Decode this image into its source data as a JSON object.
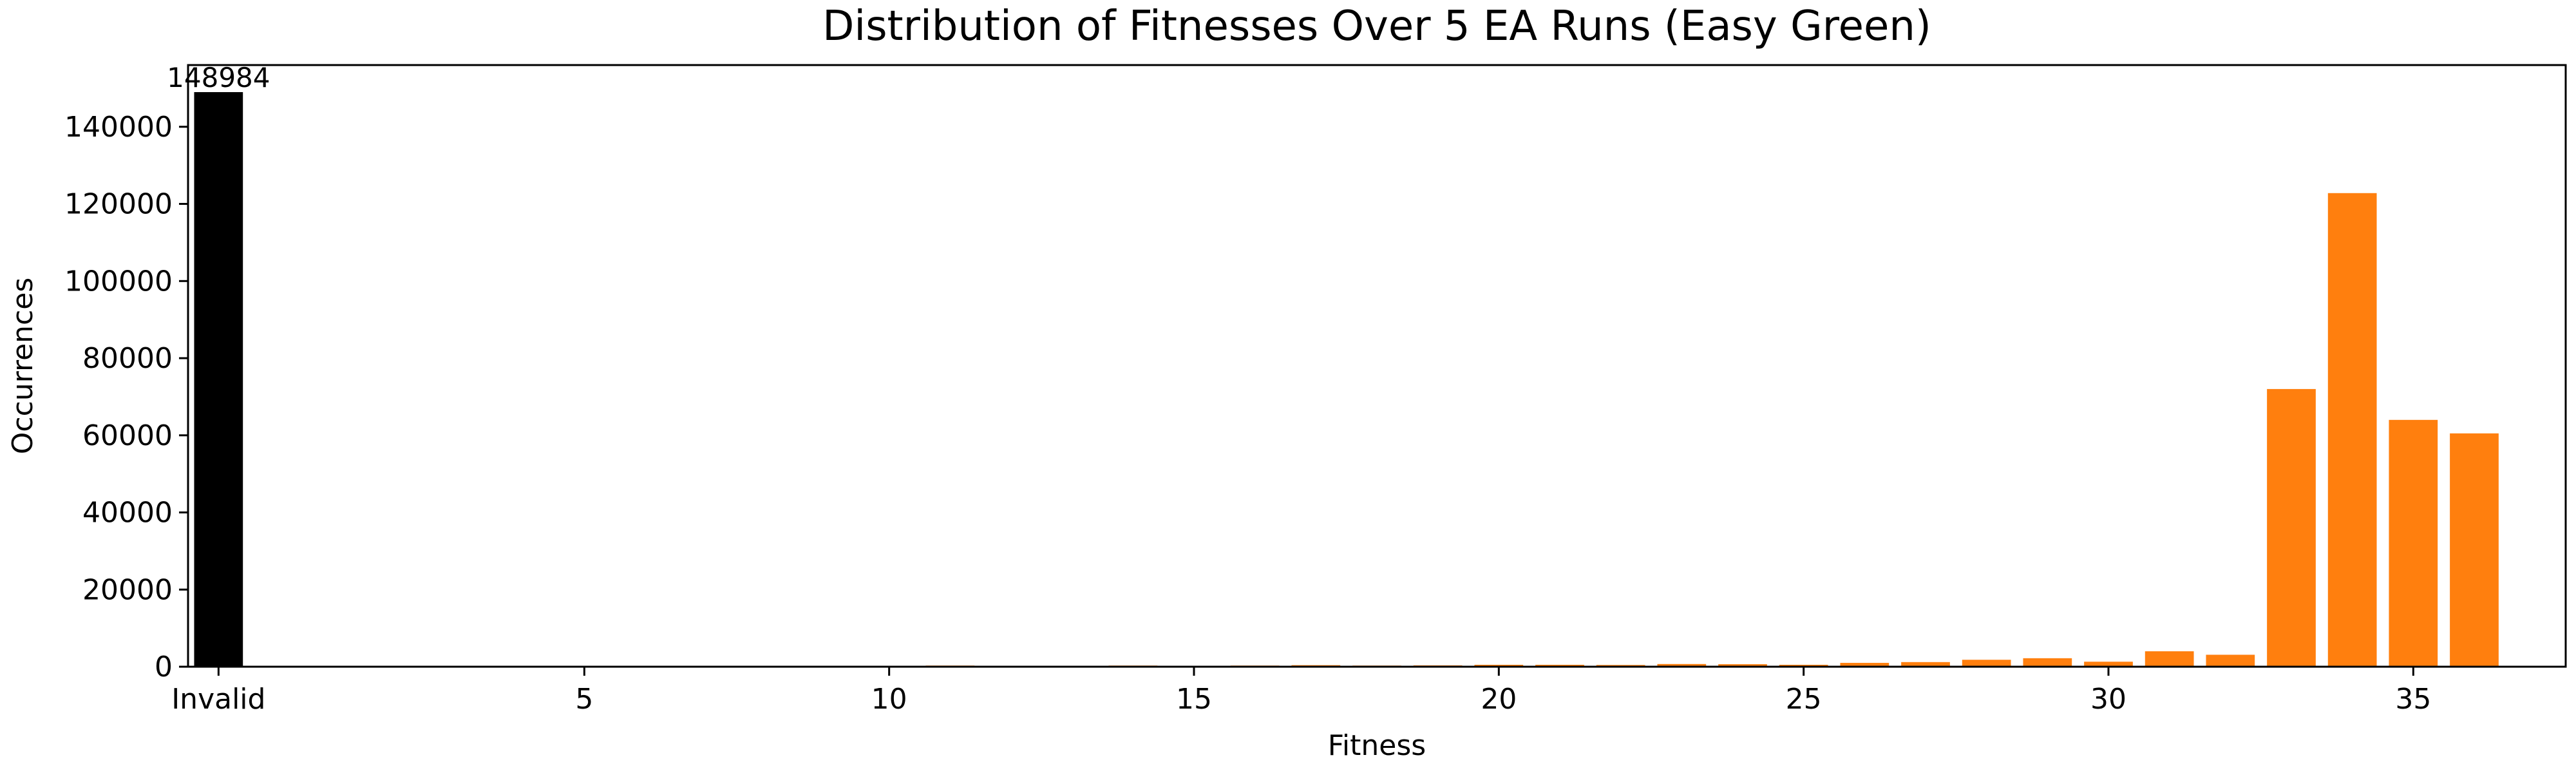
{
  "chart_data": {
    "type": "bar",
    "title": "Distribution of Fitnesses Over 5 EA Runs (Easy Green)",
    "xlabel": "Fitness",
    "ylabel": "Occurrences",
    "grid": false,
    "xlim": [
      -0.5,
      38.5
    ],
    "ylim": [
      0,
      156000
    ],
    "y_ticks": [
      0,
      20000,
      40000,
      60000,
      80000,
      100000,
      120000,
      140000
    ],
    "x_ticks": [
      {
        "x": 0,
        "label": "Invalid"
      },
      {
        "x": 6,
        "label": "5"
      },
      {
        "x": 11,
        "label": "10"
      },
      {
        "x": 16,
        "label": "15"
      },
      {
        "x": 21,
        "label": "20"
      },
      {
        "x": 26,
        "label": "25"
      },
      {
        "x": 31,
        "label": "30"
      },
      {
        "x": 36,
        "label": "35"
      }
    ],
    "invalid_bar": {
      "x": 0,
      "value": 148984,
      "label": "148984",
      "color": "#000000"
    },
    "series": [
      {
        "color": "#ff7f0e",
        "points": [
          {
            "x": 7,
            "value": 150
          },
          {
            "x": 8,
            "value": 150
          },
          {
            "x": 9,
            "value": 200
          },
          {
            "x": 10,
            "value": 250
          },
          {
            "x": 11,
            "value": 200
          },
          {
            "x": 12,
            "value": 300
          },
          {
            "x": 13,
            "value": 200
          },
          {
            "x": 14,
            "value": 250
          },
          {
            "x": 15,
            "value": 300
          },
          {
            "x": 16,
            "value": 250
          },
          {
            "x": 17,
            "value": 300
          },
          {
            "x": 18,
            "value": 400
          },
          {
            "x": 19,
            "value": 300
          },
          {
            "x": 20,
            "value": 350
          },
          {
            "x": 21,
            "value": 500
          },
          {
            "x": 22,
            "value": 500
          },
          {
            "x": 23,
            "value": 450
          },
          {
            "x": 24,
            "value": 700
          },
          {
            "x": 25,
            "value": 650
          },
          {
            "x": 26,
            "value": 500
          },
          {
            "x": 27,
            "value": 1000
          },
          {
            "x": 28,
            "value": 1200
          },
          {
            "x": 29,
            "value": 1800
          },
          {
            "x": 30,
            "value": 2200
          },
          {
            "x": 31,
            "value": 1300
          },
          {
            "x": 32,
            "value": 4000
          },
          {
            "x": 33,
            "value": 3100
          },
          {
            "x": 34,
            "value": 72000
          },
          {
            "x": 35,
            "value": 122800
          },
          {
            "x": 36,
            "value": 64000
          },
          {
            "x": 37,
            "value": 60500
          }
        ]
      }
    ]
  }
}
